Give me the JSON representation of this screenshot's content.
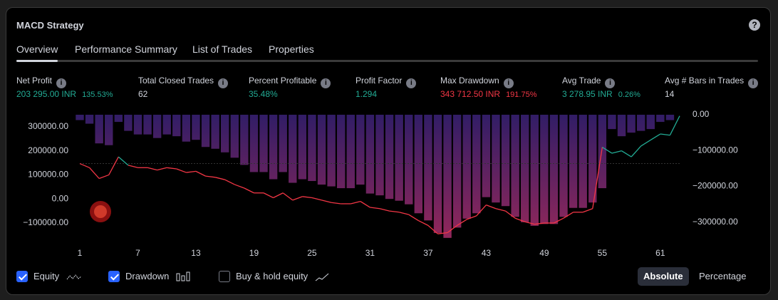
{
  "header": {
    "title": "MACD Strategy",
    "help": "?"
  },
  "tabs": [
    "Overview",
    "Performance Summary",
    "List of Trades",
    "Properties"
  ],
  "metrics": [
    {
      "label": "Net Profit",
      "value": "203 295.00 INR",
      "percent": "135.53%"
    },
    {
      "label": "Total Closed Trades",
      "value": "62"
    },
    {
      "label": "Percent Profitable",
      "value": "35.48%"
    },
    {
      "label": "Profit Factor",
      "value": "1.294"
    },
    {
      "label": "Max Drawdown",
      "value": "343 712.50 INR",
      "percent": "191.75%"
    },
    {
      "label": "Avg Trade",
      "value": "3 278.95 INR",
      "percent": "0.26%"
    },
    {
      "label": "Avg # Bars in Trades",
      "value": "14"
    }
  ],
  "chart_data": {
    "type": "line",
    "x": [
      1,
      2,
      3,
      4,
      5,
      6,
      7,
      8,
      9,
      10,
      11,
      12,
      13,
      14,
      15,
      16,
      17,
      18,
      19,
      20,
      21,
      22,
      23,
      24,
      25,
      26,
      27,
      28,
      29,
      30,
      31,
      32,
      33,
      34,
      35,
      36,
      37,
      38,
      39,
      40,
      41,
      42,
      43,
      44,
      45,
      46,
      47,
      48,
      49,
      50,
      51,
      52,
      53,
      54,
      55,
      56,
      57,
      58,
      59,
      60,
      61,
      62,
      63
    ],
    "xlim": [
      1,
      63
    ],
    "xticks": [
      1,
      7,
      13,
      19,
      25,
      31,
      37,
      43,
      49,
      55,
      61
    ],
    "ylim": [
      -180000,
      350000
    ],
    "yticks": [
      {
        "value": -100000,
        "label": "−100000.00"
      },
      {
        "value": 0,
        "label": "0.00"
      },
      {
        "value": 100000,
        "label": "100000.00"
      },
      {
        "value": 200000,
        "label": "200000.00"
      },
      {
        "value": 300000,
        "label": "300000.00"
      }
    ],
    "y2lim": [
      -356000,
      0
    ],
    "y2ticks": [
      {
        "value": 0,
        "label": "0.00"
      },
      {
        "value": -100000,
        "label": "−100000.00"
      },
      {
        "value": -200000,
        "label": "−200000.00"
      },
      {
        "value": -300000,
        "label": "−300000.00"
      }
    ],
    "series": [
      {
        "name": "Equity",
        "type": "line",
        "color": "#f23645",
        "color_above": "#22ab94",
        "values": [
          147000,
          130000,
          85000,
          100000,
          175000,
          140000,
          130000,
          130000,
          120000,
          130000,
          125000,
          110000,
          115000,
          95000,
          90000,
          80000,
          60000,
          45000,
          25000,
          25000,
          5000,
          25000,
          -5000,
          10000,
          5000,
          -5000,
          -15000,
          -20000,
          -20000,
          -10000,
          -35000,
          -40000,
          -50000,
          -55000,
          -65000,
          -90000,
          -110000,
          -145000,
          -140000,
          -110000,
          -85000,
          -70000,
          -25000,
          -40000,
          -50000,
          -80000,
          -95000,
          -105000,
          -100000,
          -100000,
          -80000,
          -55000,
          -55000,
          -40000,
          215000,
          190000,
          200000,
          175000,
          220000,
          245000,
          270000,
          265000,
          345000
        ]
      },
      {
        "name": "Drawdown",
        "type": "bar",
        "axis": "y2",
        "color": "#5b2c9e",
        "values": [
          -15000,
          -25000,
          -80000,
          -85000,
          -20000,
          -45000,
          -55000,
          -55000,
          -65000,
          -55000,
          -60000,
          -75000,
          -70000,
          -90000,
          -95000,
          -105000,
          -120000,
          -140000,
          -160000,
          -160000,
          -180000,
          -160000,
          -190000,
          -180000,
          -185000,
          -195000,
          -200000,
          -205000,
          -205000,
          -195000,
          -220000,
          -225000,
          -235000,
          -240000,
          -250000,
          -275000,
          -295000,
          -330000,
          -343712.5,
          -315000,
          -290000,
          -275000,
          -230000,
          -245000,
          -255000,
          -285000,
          -300000,
          -310000,
          -305000,
          -305000,
          -285000,
          -260000,
          -260000,
          -245000,
          -205000,
          -40000,
          -60000,
          -50000,
          -45000,
          -40000,
          -20000,
          -15000,
          0
        ]
      }
    ]
  },
  "controls": {
    "buy_hold": "Buy & hold equity",
    "buttons": [
      "Absolute",
      "Percentage"
    ]
  }
}
